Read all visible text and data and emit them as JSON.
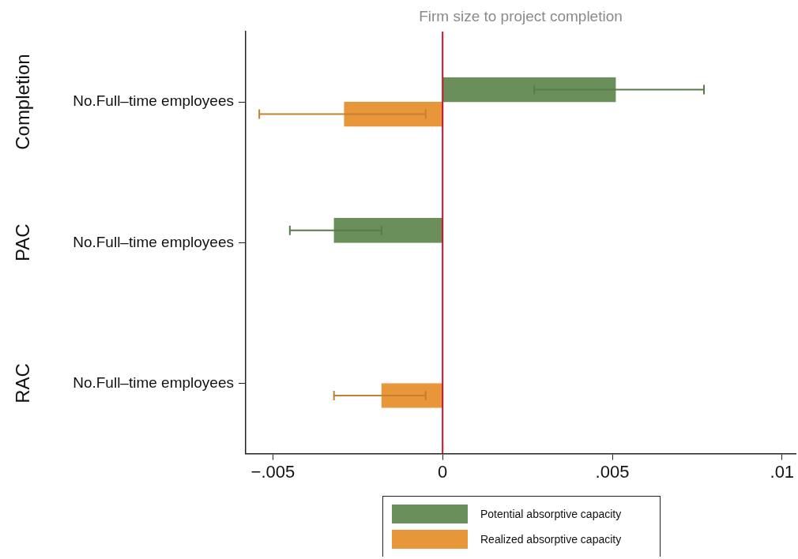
{
  "chart_data": {
    "type": "bar",
    "orientation": "horizontal",
    "title": "Firm size to project completion",
    "categories": [
      "No.Full–time employees",
      "No.Full–time employees",
      "No.Full–time employees"
    ],
    "annotations": [
      "Completion",
      "PAC",
      "RAC"
    ],
    "xlim": [
      -0.0058,
      0.0104
    ],
    "xticks": [
      {
        "value": -0.005,
        "label": "−.005"
      },
      0,
      {
        "value": 0.005,
        "label": ".005"
      },
      {
        "value": 0.01,
        "label": ".01"
      }
    ],
    "grid": false,
    "legend": "bottom",
    "series": [
      {
        "name": "Potential absorptive capacity",
        "color": "#6b8f5a",
        "values": [
          0.0051,
          -0.0032,
          null
        ],
        "errors": [
          [
            0.0027,
            0.0077
          ],
          [
            -0.0045,
            -0.0018
          ],
          null
        ]
      },
      {
        "name": "Realized absorptive capacity",
        "color": "#e8963a",
        "values": [
          -0.0029,
          null,
          -0.0018
        ],
        "errors": [
          [
            -0.0054,
            -0.0005
          ],
          null,
          [
            -0.0032,
            -0.0005
          ]
        ]
      }
    ],
    "ref_lines": [
      {
        "axis": "x",
        "value": 0,
        "color": "#c8102e"
      }
    ]
  }
}
